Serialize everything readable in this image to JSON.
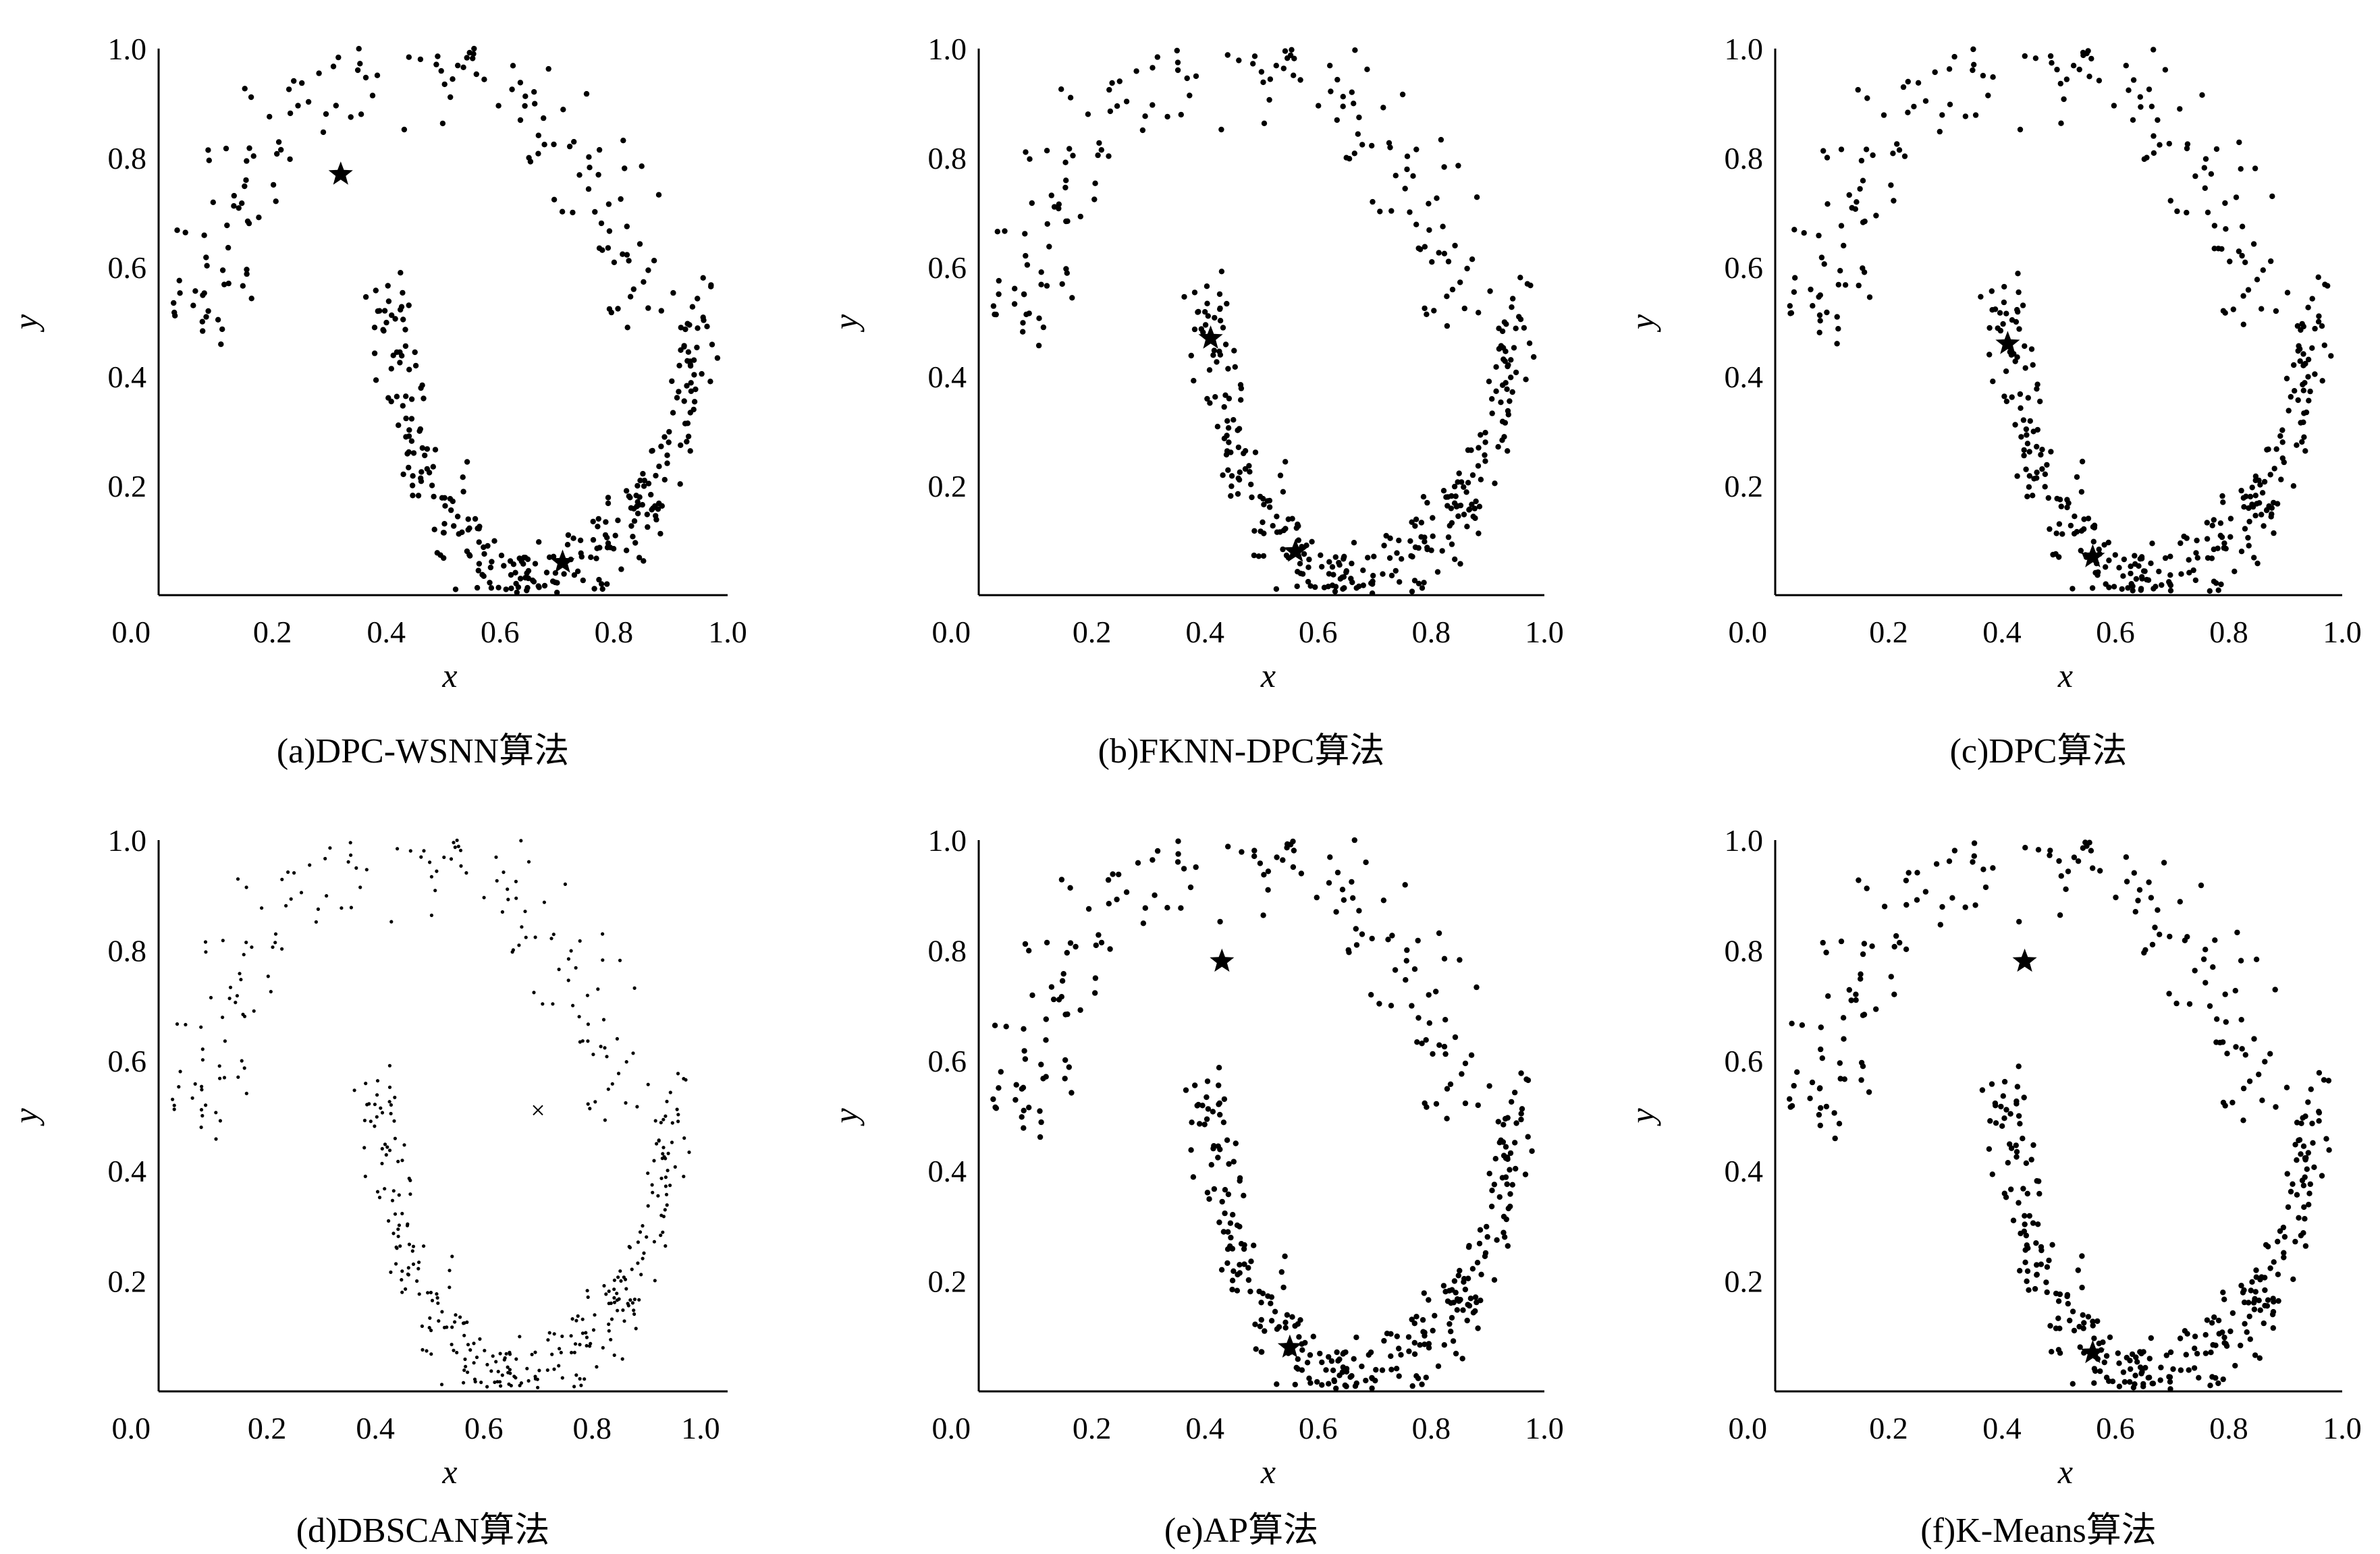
{
  "figure": {
    "background": "#ffffff",
    "marker_color": "#000000"
  },
  "chart_data": [
    {
      "type": "scatter",
      "caption": "(a)DPC-WSNN算法",
      "xlabel": "x",
      "ylabel": "y",
      "xlim": [
        0.0,
        1.0
      ],
      "ylim": [
        0.0,
        1.0
      ],
      "xticks": [
        "0.0",
        "0.2",
        "0.4",
        "0.6",
        "0.8",
        "1.0"
      ],
      "yticks": [
        "0.2",
        "0.4",
        "0.6",
        "0.8",
        "1.0"
      ],
      "grid": false,
      "marker": "dot",
      "centers": [
        {
          "x": 0.32,
          "y": 0.77
        },
        {
          "x": 0.71,
          "y": 0.06
        }
      ]
    },
    {
      "type": "scatter",
      "caption": "(b)FKNN-DPC算法",
      "xlabel": "x",
      "ylabel": "y",
      "xlim": [
        0.0,
        1.0
      ],
      "ylim": [
        0.0,
        1.0
      ],
      "xticks": [
        "0.0",
        "0.2",
        "0.4",
        "0.6",
        "0.8",
        "1.0"
      ],
      "yticks": [
        "0.2",
        "0.4",
        "0.6",
        "0.8",
        "1.0"
      ],
      "grid": false,
      "marker": "dot",
      "centers": [
        {
          "x": 0.41,
          "y": 0.47
        },
        {
          "x": 0.56,
          "y": 0.08
        }
      ]
    },
    {
      "type": "scatter",
      "caption": "(c)DPC算法",
      "xlabel": "x",
      "ylabel": "y",
      "xlim": [
        0.0,
        1.0
      ],
      "ylim": [
        0.0,
        1.0
      ],
      "xticks": [
        "0.0",
        "0.2",
        "0.4",
        "0.6",
        "0.8",
        "1.0"
      ],
      "yticks": [
        "0.2",
        "0.4",
        "0.6",
        "0.8",
        "1.0"
      ],
      "grid": false,
      "marker": "dot",
      "centers": [
        {
          "x": 0.41,
          "y": 0.46
        },
        {
          "x": 0.56,
          "y": 0.07
        }
      ]
    },
    {
      "type": "scatter",
      "caption": "(d)DBSCAN算法",
      "xlabel": "x",
      "ylabel": "y",
      "xlim": [
        0.0,
        1.05
      ],
      "ylim": [
        0.0,
        1.0
      ],
      "xticks": [
        "0.0",
        "0.2",
        "0.4",
        "0.6",
        "0.8",
        "1.0"
      ],
      "yticks": [
        "0.2",
        "0.4",
        "0.6",
        "0.8",
        "1.0"
      ],
      "grid": false,
      "marker": "small-dot",
      "centers": [],
      "noise": [
        {
          "x": 0.7,
          "y": 0.51
        }
      ]
    },
    {
      "type": "scatter",
      "caption": "(e)AP算法",
      "xlabel": "x",
      "ylabel": "y",
      "xlim": [
        0.0,
        1.0
      ],
      "ylim": [
        0.0,
        1.0
      ],
      "xticks": [
        "0.0",
        "0.2",
        "0.4",
        "0.6",
        "0.8",
        "1.0"
      ],
      "yticks": [
        "0.2",
        "0.4",
        "0.6",
        "0.8",
        "1.0"
      ],
      "grid": false,
      "marker": "dot",
      "centers": [
        {
          "x": 0.43,
          "y": 0.78
        },
        {
          "x": 0.55,
          "y": 0.08
        }
      ]
    },
    {
      "type": "scatter",
      "caption": "(f)K-Means算法",
      "xlabel": "x",
      "ylabel": "y",
      "xlim": [
        0.0,
        1.0
      ],
      "ylim": [
        0.0,
        1.0
      ],
      "xticks": [
        "0.0",
        "0.2",
        "0.4",
        "0.6",
        "0.8",
        "1.0"
      ],
      "yticks": [
        "0.2",
        "0.4",
        "0.6",
        "0.8",
        "1.0"
      ],
      "grid": false,
      "marker": "dot",
      "centers": [
        {
          "x": 0.44,
          "y": 0.78
        },
        {
          "x": 0.56,
          "y": 0.07
        }
      ]
    }
  ]
}
